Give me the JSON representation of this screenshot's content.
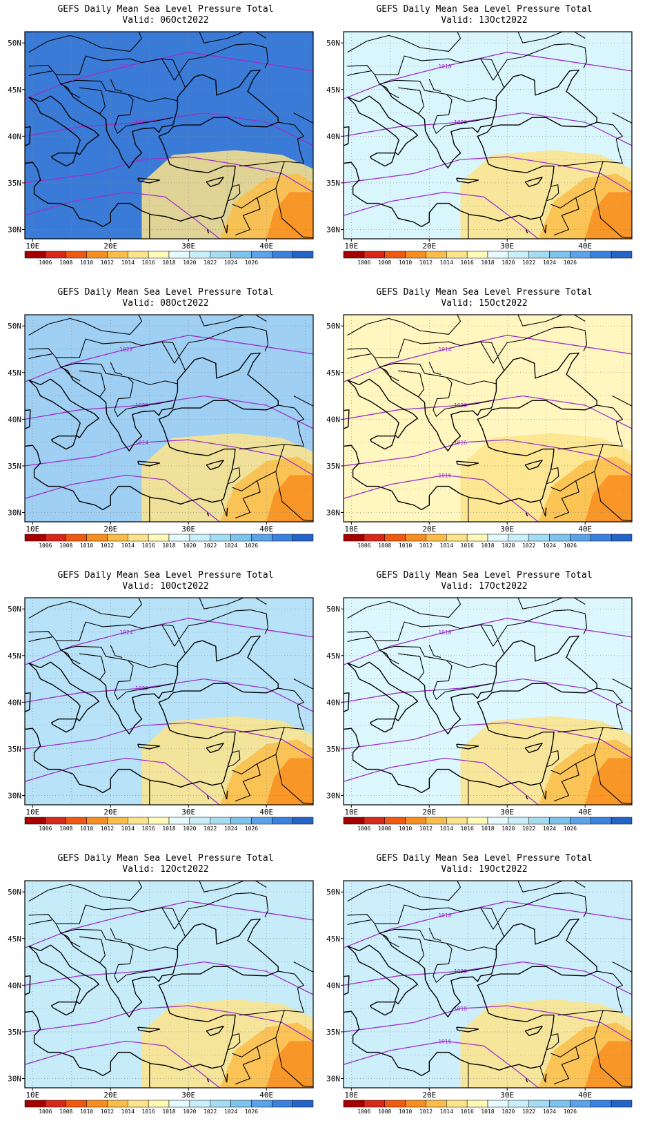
{
  "lat_ticks": [
    "30N",
    "35N",
    "40N",
    "45N",
    "50N"
  ],
  "lon_ticks": [
    "10E",
    "20E",
    "30E",
    "40E"
  ],
  "colorbar": {
    "labels": [
      "1006",
      "1008",
      "1010",
      "1012",
      "1014",
      "1016",
      "1018",
      "1020",
      "1022",
      "1024",
      "1026"
    ],
    "colors": [
      "#a50000",
      "#d8281a",
      "#f05a10",
      "#f88e20",
      "#fbbd4a",
      "#fde48a",
      "#fffab8",
      "#e6fbff",
      "#c8f0fb",
      "#a4dcf4",
      "#7ec2ee",
      "#5aa2ea",
      "#3a82e0",
      "#2464c8"
    ]
  },
  "panels": [
    {
      "title": "GEFS Daily Mean Sea Level Pressure Total",
      "valid": "Valid: 06Oct2022",
      "bg": "#3a7bd8",
      "contours": [
        "1024",
        "1024",
        "1022"
      ]
    },
    {
      "title": "GEFS Daily Mean Sea Level Pressure Total",
      "valid": "Valid: 13Oct2022",
      "bg": "#d9f6fc",
      "contours": [
        "1018",
        "1020"
      ]
    },
    {
      "title": "GEFS Daily Mean Sea Level Pressure Total",
      "valid": "Valid: 08Oct2022",
      "bg": "#9fcff2",
      "contours": [
        "1022",
        "1020",
        "1014"
      ]
    },
    {
      "title": "GEFS Daily Mean Sea Level Pressure Total",
      "valid": "Valid: 15Oct2022",
      "bg": "#fff6c0",
      "contours": [
        "1014",
        "1020",
        "1016",
        "1016"
      ]
    },
    {
      "title": "GEFS Daily Mean Sea Level Pressure Total",
      "valid": "Valid: 10Oct2022",
      "bg": "#b7e2f7",
      "contours": [
        "1024",
        "1022"
      ]
    },
    {
      "title": "GEFS Daily Mean Sea Level Pressure Total",
      "valid": "Valid: 17Oct2022",
      "bg": "#dcf7fd",
      "contours": [
        "1018"
      ]
    },
    {
      "title": "GEFS Daily Mean Sea Level Pressure Total",
      "valid": "Valid: 12Oct2022",
      "bg": "#c6ecfa",
      "contours": []
    },
    {
      "title": "GEFS Daily Mean Sea Level Pressure Total",
      "valid": "Valid: 19Oct2022",
      "bg": "#cdeefb",
      "contours": [
        "1018",
        "1020",
        "1018",
        "1016"
      ]
    }
  ]
}
